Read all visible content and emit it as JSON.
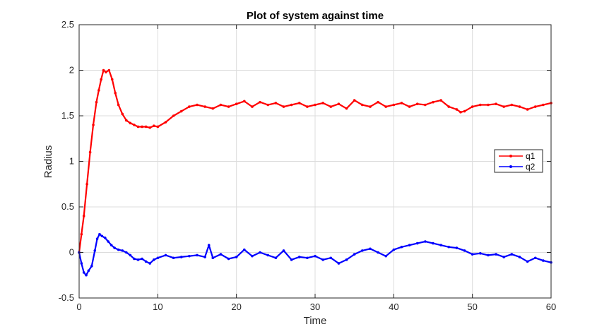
{
  "chart_data": {
    "type": "line",
    "title": "Plot of system against time",
    "xlabel": "Time",
    "ylabel": "Radius",
    "xlim": [
      0,
      60
    ],
    "ylim": [
      -0.5,
      2.5
    ],
    "xticks": [
      0,
      10,
      20,
      30,
      40,
      50,
      60
    ],
    "yticks": [
      -0.5,
      0,
      0.5,
      1,
      1.5,
      2,
      2.5
    ],
    "xtick_labels": [
      "0",
      "10",
      "20",
      "30",
      "40",
      "50",
      "60"
    ],
    "ytick_labels": [
      "-0.5",
      "0",
      "0.5",
      "1",
      "1.5",
      "2",
      "2.5"
    ],
    "grid": true,
    "legend_position": "right",
    "series": [
      {
        "name": "q1",
        "color": "#ff0000",
        "marker": "dot",
        "x": [
          0,
          0.3,
          0.6,
          1.0,
          1.4,
          1.8,
          2.2,
          2.5,
          2.8,
          3.1,
          3.4,
          3.8,
          4.2,
          4.6,
          5.0,
          5.5,
          6.0,
          6.5,
          7.0,
          7.5,
          8.0,
          8.5,
          9.0,
          9.5,
          10,
          11,
          12,
          13,
          14,
          15,
          16,
          17,
          18,
          19,
          20,
          21,
          22,
          23,
          24,
          25,
          26,
          27,
          28,
          29,
          30,
          31,
          32,
          33,
          34,
          35,
          36,
          37,
          38,
          39,
          40,
          41,
          42,
          43,
          44,
          45,
          46,
          47,
          48,
          48.5,
          49,
          50,
          51,
          52,
          53,
          54,
          55,
          56,
          57,
          58,
          59,
          60
        ],
        "y": [
          0.0,
          0.2,
          0.4,
          0.75,
          1.1,
          1.4,
          1.65,
          1.78,
          1.9,
          2.0,
          1.98,
          2.0,
          1.9,
          1.75,
          1.62,
          1.52,
          1.45,
          1.42,
          1.4,
          1.38,
          1.38,
          1.38,
          1.37,
          1.39,
          1.38,
          1.43,
          1.5,
          1.55,
          1.6,
          1.62,
          1.6,
          1.58,
          1.62,
          1.6,
          1.63,
          1.66,
          1.6,
          1.65,
          1.62,
          1.64,
          1.6,
          1.62,
          1.64,
          1.6,
          1.62,
          1.64,
          1.6,
          1.63,
          1.58,
          1.67,
          1.62,
          1.6,
          1.65,
          1.6,
          1.62,
          1.64,
          1.6,
          1.63,
          1.62,
          1.65,
          1.67,
          1.6,
          1.57,
          1.54,
          1.55,
          1.6,
          1.62,
          1.62,
          1.63,
          1.6,
          1.62,
          1.6,
          1.57,
          1.6,
          1.62,
          1.64
        ]
      },
      {
        "name": "q2",
        "color": "#0000ff",
        "marker": "dot",
        "x": [
          0,
          0.3,
          0.6,
          0.9,
          1.2,
          1.6,
          2.0,
          2.3,
          2.6,
          2.9,
          3.3,
          3.7,
          4.1,
          4.5,
          5.0,
          5.5,
          6.0,
          6.5,
          7.0,
          7.5,
          8.0,
          8.5,
          9.0,
          9.5,
          10,
          11,
          12,
          13,
          14,
          15,
          16,
          16.5,
          17,
          18,
          19,
          20,
          21,
          22,
          23,
          24,
          25,
          26,
          27,
          28,
          29,
          30,
          31,
          32,
          33,
          34,
          35,
          36,
          37,
          38,
          39,
          40,
          41,
          42,
          43,
          44,
          45,
          46,
          47,
          48,
          49,
          50,
          51,
          52,
          53,
          54,
          55,
          56,
          57,
          58,
          59,
          60
        ],
        "y": [
          0.0,
          -0.12,
          -0.22,
          -0.25,
          -0.2,
          -0.15,
          0.02,
          0.15,
          0.2,
          0.18,
          0.16,
          0.12,
          0.08,
          0.05,
          0.03,
          0.02,
          0.0,
          -0.03,
          -0.07,
          -0.08,
          -0.07,
          -0.1,
          -0.12,
          -0.08,
          -0.06,
          -0.03,
          -0.06,
          -0.05,
          -0.04,
          -0.03,
          -0.05,
          0.08,
          -0.06,
          -0.02,
          -0.07,
          -0.05,
          0.03,
          -0.04,
          0.0,
          -0.03,
          -0.06,
          0.02,
          -0.08,
          -0.05,
          -0.06,
          -0.04,
          -0.08,
          -0.06,
          -0.12,
          -0.08,
          -0.02,
          0.02,
          0.04,
          0.0,
          -0.04,
          0.03,
          0.06,
          0.08,
          0.1,
          0.12,
          0.1,
          0.08,
          0.06,
          0.05,
          0.02,
          -0.02,
          -0.01,
          -0.03,
          -0.02,
          -0.05,
          -0.02,
          -0.05,
          -0.1,
          -0.06,
          -0.09,
          -0.11
        ]
      }
    ]
  }
}
